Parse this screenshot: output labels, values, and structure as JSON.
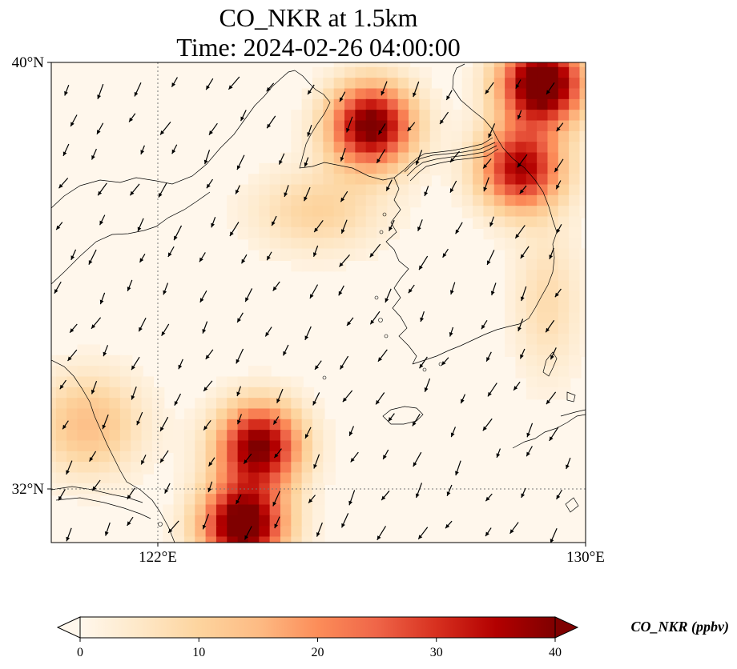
{
  "title": {
    "line1": "CO_NKR at 1.5km",
    "line2": "Time: 2024-02-26 04:00:00"
  },
  "map": {
    "lon_range": [
      120,
      130
    ],
    "lat_range": [
      31,
      40
    ],
    "lon_ticks": [
      "122°E",
      "130°E"
    ],
    "lat_ticks": [
      "40°N",
      "32°N"
    ],
    "gridlines": {
      "lon": [
        122
      ],
      "lat": [
        32
      ],
      "style": "dotted"
    },
    "hotspots": [
      {
        "lon": 126.0,
        "lat": 38.8,
        "peak": 42
      },
      {
        "lon": 129.2,
        "lat": 39.6,
        "peak": 48
      },
      {
        "lon": 128.8,
        "lat": 38.0,
        "peak": 36
      },
      {
        "lon": 123.9,
        "lat": 32.8,
        "peak": 40
      },
      {
        "lon": 123.6,
        "lat": 31.3,
        "peak": 46
      }
    ],
    "wind": {
      "dominant_direction": "from north-northeast",
      "vector_color": "#000000"
    }
  },
  "colorbar": {
    "label": "CO_NKR (ppbv)",
    "min": 0,
    "max": 40,
    "ticks": [
      "0",
      "10",
      "20",
      "30",
      "40"
    ],
    "extend": "both",
    "colormap": "OrRd",
    "colors": [
      "#fff7ec",
      "#fee8c8",
      "#fdd49e",
      "#fdbb84",
      "#fc8d59",
      "#ef6548",
      "#d7301f",
      "#b30000",
      "#7f0000"
    ]
  }
}
